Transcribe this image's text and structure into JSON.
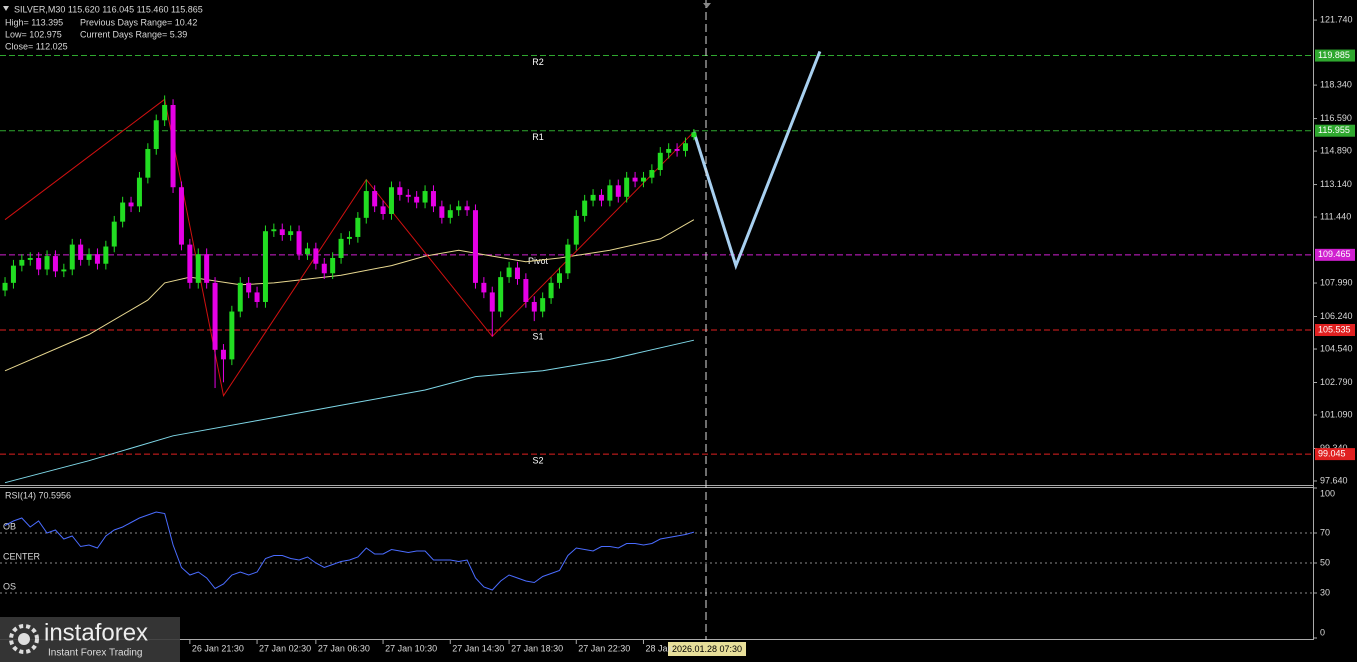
{
  "chart_data": {
    "type": "candlestick",
    "symbol_line": "SILVER,M30  115.620 116.045 115.460 115.865",
    "info_lines": [
      [
        "High= 113.395",
        "Previous Days Range= 10.42"
      ],
      [
        "Low= 102.975",
        "Current Days Range= 5.39"
      ],
      [
        "Close= 112.025"
      ]
    ],
    "up_color": "#22dd22",
    "down_color": "#e600e6",
    "xlim": [
      -0.6,
      155.7
    ],
    "ylim": [
      97.43,
      122.79
    ],
    "yticks": [
      {
        "value": 121.74,
        "label": "121.740"
      },
      {
        "value": 118.34,
        "label": "118.340"
      },
      {
        "value": 116.59,
        "label": "116.590"
      },
      {
        "value": 114.89,
        "label": "114.890"
      },
      {
        "value": 113.14,
        "label": "113.140"
      },
      {
        "value": 111.44,
        "label": "111.440"
      },
      {
        "value": 107.99,
        "label": "107.990"
      },
      {
        "value": 106.24,
        "label": "106.240"
      },
      {
        "value": 104.54,
        "label": "104.540"
      },
      {
        "value": 102.79,
        "label": "102.790"
      },
      {
        "value": 101.09,
        "label": "101.090"
      },
      {
        "value": 99.34,
        "label": "99.340"
      },
      {
        "value": 97.64,
        "label": "97.640"
      }
    ],
    "categories": [
      null,
      null,
      null,
      null,
      null,
      null,
      null,
      null,
      null,
      null,
      null,
      null,
      null,
      null,
      null,
      null,
      null,
      null,
      null,
      null,
      null,
      null,
      "26 Jan 21:30",
      null,
      null,
      null,
      null,
      null,
      null,
      null,
      "27 Jan 02:30",
      null,
      null,
      null,
      null,
      null,
      null,
      "27 Jan 06:30",
      null,
      null,
      null,
      null,
      null,
      null,
      null,
      "27 Jan 10:30",
      null,
      null,
      null,
      null,
      null,
      null,
      null,
      "27 Jan 14:30",
      null,
      null,
      null,
      null,
      null,
      null,
      "27 Jan 18:30",
      null,
      null,
      null,
      null,
      null,
      null,
      null,
      "27 Jan 22:30",
      null,
      null,
      null,
      null,
      null,
      null,
      null,
      "28 Jan",
      null,
      null,
      null,
      null,
      null,
      null
    ],
    "candles": [
      [
        107.6,
        108.3,
        107.3,
        108.0
      ],
      [
        108.0,
        109.2,
        107.7,
        108.9
      ],
      [
        108.9,
        109.5,
        108.6,
        109.2
      ],
      [
        109.2,
        109.6,
        108.9,
        109.3
      ],
      [
        109.3,
        109.6,
        108.4,
        108.7
      ],
      [
        108.7,
        109.7,
        108.4,
        109.4
      ],
      [
        109.4,
        109.7,
        108.3,
        108.6
      ],
      [
        108.6,
        109.0,
        108.3,
        108.7
      ],
      [
        108.7,
        110.3,
        108.4,
        110.0
      ],
      [
        110.0,
        110.3,
        108.9,
        109.2
      ],
      [
        109.2,
        109.8,
        108.9,
        109.5
      ],
      [
        109.5,
        109.8,
        108.7,
        109.0
      ],
      [
        109.0,
        110.2,
        108.7,
        109.9
      ],
      [
        109.9,
        111.5,
        109.6,
        111.2
      ],
      [
        111.2,
        112.5,
        110.9,
        112.2
      ],
      [
        112.2,
        112.5,
        111.7,
        112.0
      ],
      [
        112.0,
        113.8,
        111.7,
        113.5
      ],
      [
        113.5,
        115.3,
        113.2,
        115.0
      ],
      [
        115.0,
        116.8,
        114.7,
        116.5
      ],
      [
        116.5,
        117.8,
        116.2,
        117.3
      ],
      [
        117.3,
        117.6,
        112.7,
        113.0
      ],
      [
        113.0,
        113.3,
        109.7,
        110.0
      ],
      [
        110.0,
        110.3,
        107.7,
        108.0
      ],
      [
        108.0,
        109.8,
        107.7,
        109.5
      ],
      [
        109.5,
        109.8,
        107.7,
        108.0
      ],
      [
        108.0,
        108.3,
        102.5,
        104.5
      ],
      [
        104.5,
        104.8,
        102.8,
        104.0
      ],
      [
        104.0,
        106.8,
        103.7,
        106.5
      ],
      [
        106.5,
        108.3,
        106.2,
        108.0
      ],
      [
        108.0,
        108.3,
        107.2,
        107.5
      ],
      [
        107.5,
        107.8,
        106.7,
        107.0
      ],
      [
        107.0,
        111.0,
        106.7,
        110.7
      ],
      [
        110.7,
        111.1,
        110.4,
        110.8
      ],
      [
        110.8,
        111.1,
        110.2,
        110.5
      ],
      [
        110.5,
        111.0,
        110.2,
        110.7
      ],
      [
        110.7,
        111.0,
        109.2,
        109.5
      ],
      [
        109.5,
        110.1,
        109.2,
        109.8
      ],
      [
        109.8,
        110.1,
        108.7,
        109.0
      ],
      [
        109.0,
        109.3,
        108.2,
        108.5
      ],
      [
        108.5,
        109.6,
        108.2,
        109.3
      ],
      [
        109.3,
        110.6,
        109.0,
        110.3
      ],
      [
        110.3,
        110.7,
        110.0,
        110.4
      ],
      [
        110.4,
        111.7,
        110.1,
        111.4
      ],
      [
        111.4,
        113.4,
        111.1,
        112.8
      ],
      [
        112.8,
        113.1,
        111.7,
        112.0
      ],
      [
        112.0,
        112.3,
        111.3,
        111.6
      ],
      [
        111.6,
        113.3,
        111.3,
        113.0
      ],
      [
        113.0,
        113.3,
        112.3,
        112.6
      ],
      [
        112.6,
        112.9,
        112.2,
        112.5
      ],
      [
        112.5,
        112.8,
        111.9,
        112.2
      ],
      [
        112.2,
        113.1,
        111.9,
        112.8
      ],
      [
        112.8,
        113.1,
        111.7,
        112.0
      ],
      [
        112.0,
        112.3,
        111.1,
        111.4
      ],
      [
        111.4,
        112.1,
        111.1,
        111.8
      ],
      [
        111.8,
        112.3,
        111.5,
        112.0
      ],
      [
        112.0,
        112.3,
        111.5,
        111.8
      ],
      [
        111.8,
        112.1,
        107.7,
        108.0
      ],
      [
        108.0,
        108.3,
        107.2,
        107.5
      ],
      [
        107.5,
        107.8,
        105.2,
        106.5
      ],
      [
        106.5,
        108.6,
        106.2,
        108.3
      ],
      [
        108.3,
        109.1,
        108.0,
        108.8
      ],
      [
        108.8,
        109.1,
        107.9,
        108.2
      ],
      [
        108.2,
        108.5,
        106.7,
        107.0
      ],
      [
        107.0,
        107.3,
        106.0,
        106.5
      ],
      [
        106.5,
        107.5,
        106.2,
        107.2
      ],
      [
        107.2,
        108.3,
        106.9,
        108.0
      ],
      [
        108.0,
        108.8,
        107.7,
        108.5
      ],
      [
        108.5,
        110.3,
        108.2,
        110.0
      ],
      [
        110.0,
        111.8,
        109.7,
        111.5
      ],
      [
        111.5,
        112.6,
        111.2,
        112.3
      ],
      [
        112.3,
        112.9,
        112.0,
        112.6
      ],
      [
        112.6,
        112.9,
        112.0,
        112.3
      ],
      [
        112.3,
        113.4,
        112.0,
        113.1
      ],
      [
        113.1,
        113.4,
        112.2,
        112.5
      ],
      [
        112.5,
        113.8,
        112.2,
        113.5
      ],
      [
        113.5,
        113.8,
        113.0,
        113.3
      ],
      [
        113.3,
        113.8,
        113.0,
        113.5
      ],
      [
        113.5,
        114.2,
        113.2,
        113.9
      ],
      [
        113.9,
        115.1,
        113.6,
        114.8
      ],
      [
        114.8,
        115.3,
        114.5,
        115.0
      ],
      [
        115.0,
        115.3,
        114.6,
        114.9
      ],
      [
        114.9,
        115.6,
        114.6,
        115.3
      ],
      [
        115.62,
        116.045,
        115.46,
        115.865
      ]
    ],
    "levels": [
      {
        "name": "R2",
        "value": 119.885,
        "color": "#2fa82f"
      },
      {
        "name": "R1",
        "value": 115.955,
        "color": "#2fa82f"
      },
      {
        "name": "Pivot",
        "value": 109.465,
        "color": "#d020d0"
      },
      {
        "name": "S1",
        "value": 105.535,
        "color": "#e02020"
      },
      {
        "name": "S2",
        "value": 99.045,
        "color": "#e02020"
      }
    ],
    "lines": [
      {
        "color": "#e8d890",
        "width": 1,
        "x": [
          0,
          10,
          17,
          19,
          22,
          28,
          32,
          40,
          46,
          50,
          54,
          58,
          62,
          66,
          72,
          78,
          82
        ],
        "values": [
          103.4,
          105.3,
          107.1,
          108.0,
          108.3,
          107.9,
          108.0,
          108.4,
          108.9,
          109.4,
          109.7,
          109.4,
          109.1,
          109.3,
          109.7,
          110.3,
          111.3
        ]
      },
      {
        "color": "#7fd8e8",
        "width": 1,
        "x": [
          0,
          10,
          20,
          30,
          40,
          50,
          56,
          64,
          72,
          82
        ],
        "values": [
          97.55,
          98.7,
          100.0,
          100.8,
          101.6,
          102.4,
          103.1,
          103.4,
          104.0,
          105.0
        ]
      },
      {
        "color": "#d01010",
        "width": 1,
        "x": [
          0,
          19,
          26,
          43,
          58,
          82
        ],
        "values": [
          111.3,
          117.6,
          102.1,
          113.4,
          105.2,
          115.9
        ]
      },
      {
        "color": "#a8d0f0",
        "width": 3,
        "x": [
          82,
          87,
          97
        ],
        "values": [
          115.9,
          108.9,
          120.1
        ]
      }
    ],
    "cursor_time": "2026.01.28 07:30",
    "rsi": {
      "title": "RSI(14) 70.5956",
      "color": "#4a6cff",
      "ylim": [
        0,
        100
      ],
      "yticks": [
        0,
        30,
        50,
        70,
        100
      ],
      "levels": [
        {
          "label": "OB",
          "value": 70
        },
        {
          "label": "CENTER",
          "value": 50
        },
        {
          "label": "OS",
          "value": 30
        }
      ],
      "values": [
        75,
        78,
        80,
        74,
        78,
        70,
        72,
        66,
        68,
        61,
        62,
        60,
        68,
        72,
        74,
        77,
        80,
        82,
        84,
        83,
        62,
        47,
        42,
        44,
        40,
        33,
        36,
        42,
        44,
        42,
        44,
        53,
        55,
        55,
        53,
        52,
        54,
        50,
        47,
        49,
        51,
        52,
        54,
        60,
        56,
        56,
        59,
        58,
        57,
        58,
        58,
        52,
        52,
        52,
        51,
        52,
        40,
        34,
        32,
        38,
        42,
        40,
        38,
        37,
        41,
        43,
        45,
        55,
        60,
        59,
        58,
        61,
        61,
        60,
        63,
        63,
        62,
        63,
        66,
        67,
        68,
        69,
        70.5956
      ]
    },
    "watermark": {
      "brand": "instaforex",
      "tagline": "Instant Forex Trading"
    }
  }
}
